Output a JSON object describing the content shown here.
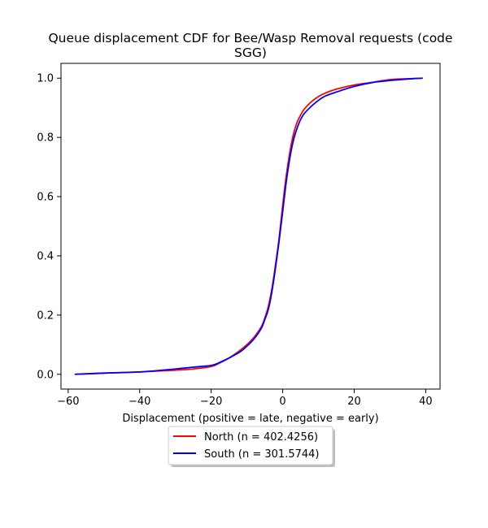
{
  "chart_data": {
    "type": "line",
    "title_lines": [
      "Queue displacement CDF for Bee/Wasp Removal  requests (code",
      "SGG)"
    ],
    "xlabel": "Displacement (positive = late, negative = early)",
    "ylabel": "",
    "xlim": [
      -62,
      44
    ],
    "ylim": [
      -0.05,
      1.05
    ],
    "x_ticks": [
      -60,
      -40,
      -20,
      0,
      20,
      40
    ],
    "x_tick_labels": [
      "−60",
      "−40",
      "−20",
      "0",
      "20",
      "40"
    ],
    "y_ticks": [
      0.0,
      0.2,
      0.4,
      0.6,
      0.8,
      1.0
    ],
    "y_tick_labels": [
      "0.0",
      "0.2",
      "0.4",
      "0.6",
      "0.8",
      "1.0"
    ],
    "grid": false,
    "legend_placement": "below",
    "series": [
      {
        "name": "North (n = 402.4256)",
        "color": "#ff0000",
        "x": [
          -58,
          -50,
          -40,
          -30,
          -25,
          -20,
          -18,
          -15,
          -12,
          -10,
          -8,
          -6,
          -5,
          -4,
          -3,
          -2,
          -1,
          0,
          1,
          2,
          3,
          4,
          5,
          6,
          8,
          10,
          12,
          15,
          20,
          25,
          30,
          35,
          39
        ],
        "y": [
          0.0,
          0.004,
          0.008,
          0.014,
          0.018,
          0.026,
          0.036,
          0.055,
          0.08,
          0.1,
          0.125,
          0.16,
          0.19,
          0.23,
          0.29,
          0.37,
          0.46,
          0.57,
          0.67,
          0.75,
          0.81,
          0.85,
          0.875,
          0.895,
          0.92,
          0.938,
          0.95,
          0.963,
          0.977,
          0.986,
          0.995,
          0.998,
          1.0
        ]
      },
      {
        "name": "South (n = 301.5744)",
        "color": "#0000ff",
        "x": [
          -58,
          -50,
          -40,
          -30,
          -25,
          -20,
          -18,
          -15,
          -12,
          -10,
          -8,
          -6,
          -5,
          -4,
          -3,
          -2,
          -1,
          0,
          1,
          2,
          3,
          4,
          5,
          6,
          8,
          10,
          12,
          15,
          20,
          25,
          30,
          35,
          39
        ],
        "y": [
          0.0,
          0.004,
          0.008,
          0.018,
          0.024,
          0.03,
          0.038,
          0.055,
          0.075,
          0.095,
          0.12,
          0.155,
          0.185,
          0.22,
          0.28,
          0.36,
          0.45,
          0.55,
          0.65,
          0.73,
          0.79,
          0.83,
          0.86,
          0.88,
          0.905,
          0.925,
          0.94,
          0.953,
          0.972,
          0.985,
          0.992,
          0.997,
          1.0
        ]
      }
    ]
  }
}
